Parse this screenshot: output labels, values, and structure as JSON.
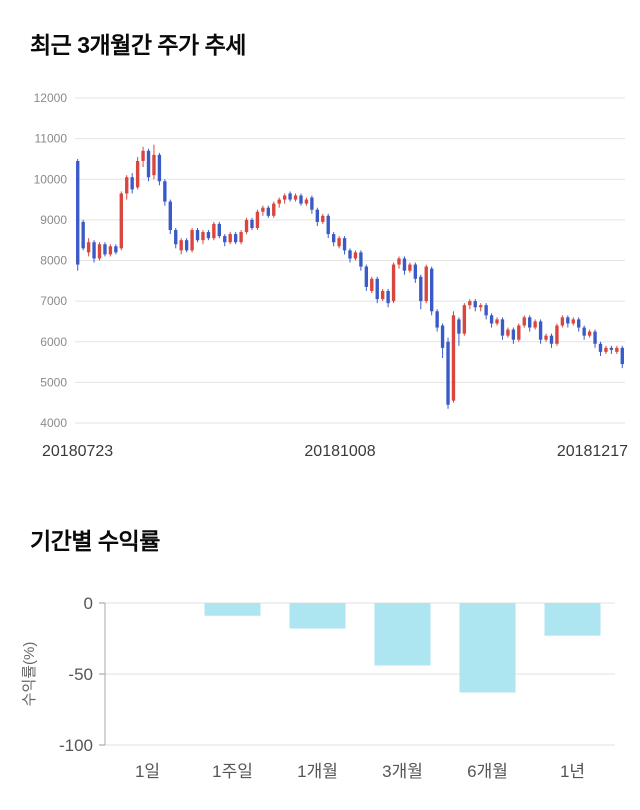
{
  "sections": {
    "price_trend": {
      "title": "최근 3개월간 주가 추세"
    },
    "returns": {
      "title": "기간별 수익률"
    }
  },
  "chart_data": [
    {
      "type": "candlestick",
      "title": "최근 3개월간 주가 추세",
      "ylim": [
        4000,
        12000
      ],
      "y_ticks": [
        12000,
        11000,
        10000,
        9000,
        8000,
        7000,
        6000,
        5000,
        4000
      ],
      "x_tick_labels": [
        "20180723",
        "20181008",
        "20181217"
      ],
      "grid": true,
      "up_color": "#d9463e",
      "down_color": "#3a5bc7",
      "candles_format": "open_high_low_close",
      "candles": [
        [
          10450,
          10500,
          7750,
          7900
        ],
        [
          8950,
          9000,
          8250,
          8300
        ],
        [
          8200,
          8550,
          8100,
          8450
        ],
        [
          8450,
          8500,
          7950,
          8050
        ],
        [
          8050,
          8450,
          8000,
          8400
        ],
        [
          8400,
          8450,
          8100,
          8150
        ],
        [
          8150,
          8400,
          8100,
          8350
        ],
        [
          8350,
          8400,
          8150,
          8200
        ],
        [
          8300,
          9700,
          8250,
          9650
        ],
        [
          9650,
          10100,
          9500,
          10050
        ],
        [
          10050,
          10150,
          9650,
          9750
        ],
        [
          9800,
          10550,
          9750,
          10450
        ],
        [
          10450,
          10800,
          10300,
          10700
        ],
        [
          10700,
          10750,
          9950,
          10050
        ],
        [
          10100,
          10850,
          10000,
          10600
        ],
        [
          10600,
          10650,
          9850,
          9950
        ],
        [
          9950,
          10000,
          9350,
          9450
        ],
        [
          9450,
          9500,
          8650,
          8750
        ],
        [
          8750,
          8800,
          8300,
          8400
        ],
        [
          8250,
          8550,
          8150,
          8500
        ],
        [
          8500,
          8550,
          8200,
          8250
        ],
        [
          8250,
          8800,
          8200,
          8750
        ],
        [
          8750,
          8800,
          8450,
          8500
        ],
        [
          8500,
          8750,
          8400,
          8700
        ],
        [
          8700,
          8750,
          8500,
          8550
        ],
        [
          8550,
          8950,
          8500,
          8900
        ],
        [
          8900,
          8950,
          8550,
          8600
        ],
        [
          8600,
          8650,
          8350,
          8450
        ],
        [
          8450,
          8700,
          8400,
          8650
        ],
        [
          8650,
          8700,
          8400,
          8450
        ],
        [
          8450,
          8750,
          8400,
          8700
        ],
        [
          8700,
          9050,
          8650,
          9000
        ],
        [
          9000,
          9050,
          8750,
          8800
        ],
        [
          8800,
          9250,
          8750,
          9200
        ],
        [
          9200,
          9350,
          9100,
          9300
        ],
        [
          9300,
          9350,
          9050,
          9100
        ],
        [
          9100,
          9450,
          9050,
          9400
        ],
        [
          9400,
          9550,
          9300,
          9500
        ],
        [
          9500,
          9650,
          9400,
          9600
        ],
        [
          9650,
          9700,
          9450,
          9500
        ],
        [
          9500,
          9650,
          9450,
          9600
        ],
        [
          9600,
          9650,
          9350,
          9400
        ],
        [
          9400,
          9550,
          9350,
          9500
        ],
        [
          9550,
          9600,
          9150,
          9250
        ],
        [
          9250,
          9300,
          8850,
          8950
        ],
        [
          8950,
          9150,
          8900,
          9100
        ],
        [
          9100,
          9150,
          8550,
          8650
        ],
        [
          8650,
          8700,
          8350,
          8450
        ],
        [
          8350,
          8600,
          8300,
          8550
        ],
        [
          8550,
          8600,
          8150,
          8250
        ],
        [
          8250,
          8300,
          7950,
          8050
        ],
        [
          8050,
          8250,
          8000,
          8200
        ],
        [
          8200,
          8250,
          7750,
          7850
        ],
        [
          7850,
          7900,
          7250,
          7350
        ],
        [
          7250,
          7600,
          7200,
          7550
        ],
        [
          7550,
          7600,
          6950,
          7050
        ],
        [
          7050,
          7300,
          7000,
          7250
        ],
        [
          7250,
          7300,
          6850,
          6950
        ],
        [
          7000,
          7950,
          6950,
          7900
        ],
        [
          7900,
          8100,
          7800,
          8050
        ],
        [
          8050,
          8100,
          7650,
          7750
        ],
        [
          7750,
          7950,
          7700,
          7900
        ],
        [
          7900,
          7950,
          7450,
          7550
        ],
        [
          7600,
          7650,
          6800,
          7000
        ],
        [
          7000,
          7900,
          6950,
          7850
        ],
        [
          7800,
          7850,
          6650,
          6750
        ],
        [
          6750,
          6800,
          6250,
          6350
        ],
        [
          6400,
          6450,
          5600,
          5850
        ],
        [
          6000,
          6100,
          4350,
          4450
        ],
        [
          4550,
          6750,
          4500,
          6650
        ],
        [
          6550,
          6600,
          5900,
          6200
        ],
        [
          6200,
          6950,
          6150,
          6900
        ],
        [
          6900,
          7050,
          6800,
          7000
        ],
        [
          7000,
          7050,
          6750,
          6850
        ],
        [
          6850,
          6950,
          6750,
          6900
        ],
        [
          6900,
          6950,
          6550,
          6650
        ],
        [
          6650,
          6700,
          6350,
          6450
        ],
        [
          6450,
          6600,
          6400,
          6550
        ],
        [
          6550,
          6600,
          6050,
          6150
        ],
        [
          6150,
          6350,
          6100,
          6300
        ],
        [
          6300,
          6350,
          5950,
          6050
        ],
        [
          6050,
          6450,
          6000,
          6400
        ],
        [
          6400,
          6650,
          6350,
          6600
        ],
        [
          6600,
          6650,
          6250,
          6350
        ],
        [
          6350,
          6550,
          6300,
          6500
        ],
        [
          6500,
          6550,
          5950,
          6050
        ],
        [
          6050,
          6200,
          6000,
          6150
        ],
        [
          6150,
          6200,
          5850,
          5950
        ],
        [
          5950,
          6450,
          5900,
          6400
        ],
        [
          6400,
          6650,
          6350,
          6600
        ],
        [
          6600,
          6650,
          6350,
          6450
        ],
        [
          6450,
          6600,
          6400,
          6550
        ],
        [
          6550,
          6600,
          6250,
          6350
        ],
        [
          6350,
          6400,
          6050,
          6150
        ],
        [
          6150,
          6300,
          6100,
          6250
        ],
        [
          6250,
          6300,
          5850,
          5950
        ],
        [
          5950,
          6000,
          5650,
          5750
        ],
        [
          5750,
          5900,
          5700,
          5850
        ],
        [
          5850,
          5900,
          5700,
          5800
        ],
        [
          5750,
          5900,
          5700,
          5850
        ],
        [
          5850,
          5900,
          5350,
          5450
        ]
      ]
    },
    {
      "type": "bar",
      "title": "기간별 수익률",
      "categories": [
        "1일",
        "1주일",
        "1개월",
        "3개월",
        "6개월",
        "1년"
      ],
      "values": [
        0,
        -9,
        -18,
        -44,
        -63,
        -23
      ],
      "xlabel": "",
      "ylabel": "수익률(%)",
      "ylim": [
        -100,
        0
      ],
      "y_ticks": [
        0,
        -50,
        -100
      ],
      "grid": true,
      "legend": "none",
      "bar_color": "#ade6f0"
    }
  ]
}
